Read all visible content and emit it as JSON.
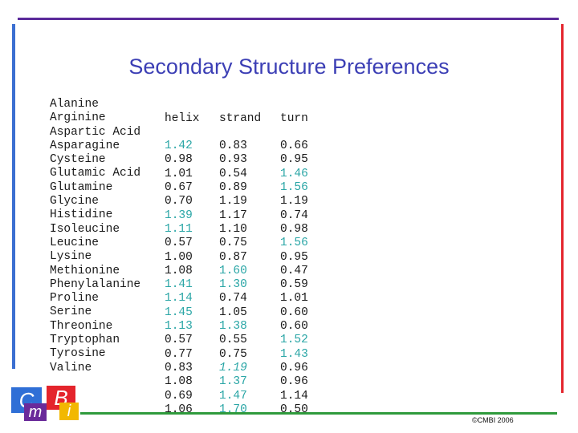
{
  "title": "Secondary Structure Preferences",
  "headers": {
    "helix": "helix",
    "strand": "strand",
    "turn": "turn"
  },
  "rows": [
    {
      "name": "Alanine",
      "helix": "1.42",
      "strand": "0.83",
      "turn": "0.66",
      "hl": [
        "helix"
      ]
    },
    {
      "name": "Arginine",
      "helix": "0.98",
      "strand": "0.93",
      "turn": "0.95",
      "hl": []
    },
    {
      "name": "Aspartic Acid",
      "helix": "1.01",
      "strand": "0.54",
      "turn": "1.46",
      "hl": [
        "turn"
      ]
    },
    {
      "name": "Asparagine",
      "helix": "0.67",
      "strand": "0.89",
      "turn": "1.56",
      "hl": [
        "turn"
      ]
    },
    {
      "name": "Cysteine",
      "helix": "0.70",
      "strand": "1.19",
      "turn": "1.19",
      "hl": []
    },
    {
      "name": "Glutamic Acid",
      "helix": "1.39",
      "strand": "1.17",
      "turn": "0.74",
      "hl": [
        "helix"
      ]
    },
    {
      "name": "Glutamine",
      "helix": "1.11",
      "strand": "1.10",
      "turn": "0.98",
      "hl": [
        "helix"
      ]
    },
    {
      "name": "Glycine",
      "helix": "0.57",
      "strand": "0.75",
      "turn": "1.56",
      "hl": [
        "turn"
      ]
    },
    {
      "name": "Histidine",
      "helix": "1.00",
      "strand": "0.87",
      "turn": "0.95",
      "hl": []
    },
    {
      "name": "Isoleucine",
      "helix": "1.08",
      "strand": "1.60",
      "turn": "0.47",
      "hl": [
        "strand"
      ]
    },
    {
      "name": "Leucine",
      "helix": "1.41",
      "strand": "1.30",
      "turn": "0.59",
      "hl": [
        "helix",
        "strand"
      ]
    },
    {
      "name": "Lysine",
      "helix": "1.14",
      "strand": "0.74",
      "turn": "1.01",
      "hl": [
        "helix"
      ]
    },
    {
      "name": "Methionine",
      "helix": "1.45",
      "strand": "1.05",
      "turn": "0.60",
      "hl": [
        "helix"
      ]
    },
    {
      "name": "Phenylalanine",
      "helix": "1.13",
      "strand": "1.38",
      "turn": "0.60",
      "hl": [
        "helix",
        "strand"
      ]
    },
    {
      "name": "Proline",
      "helix": "0.57",
      "strand": "0.55",
      "turn": "1.52",
      "hl": [
        "turn"
      ]
    },
    {
      "name": "Serine",
      "helix": "0.77",
      "strand": "0.75",
      "turn": "1.43",
      "hl": [
        "turn"
      ]
    },
    {
      "name": "Threonine",
      "helix": "0.83",
      "strand": "1.19",
      "turn": "0.96",
      "hl": [
        "strand"
      ],
      "italic": [
        "strand"
      ]
    },
    {
      "name": "Tryptophan",
      "helix": "1.08",
      "strand": "1.37",
      "turn": "0.96",
      "hl": [
        "strand"
      ]
    },
    {
      "name": "Tyrosine",
      "helix": "0.69",
      "strand": "1.47",
      "turn": "1.14",
      "hl": [
        "strand"
      ]
    },
    {
      "name": "Valine",
      "helix": "1.06",
      "strand": "1.70",
      "turn": "0.50",
      "hl": [
        "strand"
      ]
    }
  ],
  "logo": {
    "letters": [
      "C",
      "B",
      "m",
      "i"
    ],
    "colors": [
      "#2f6fd6",
      "#e4242c",
      "#6a2a9a",
      "#f2b800"
    ]
  },
  "copyright": "©CMBI 2006",
  "colors": {
    "title": "#3c3fb5",
    "highlight": "#2aa6a6",
    "top_bar": "#5b2a9a",
    "left_bar": "#3b6fd1",
    "right_bar": "#e4242c",
    "bottom_bar": "#2f9a3c"
  }
}
